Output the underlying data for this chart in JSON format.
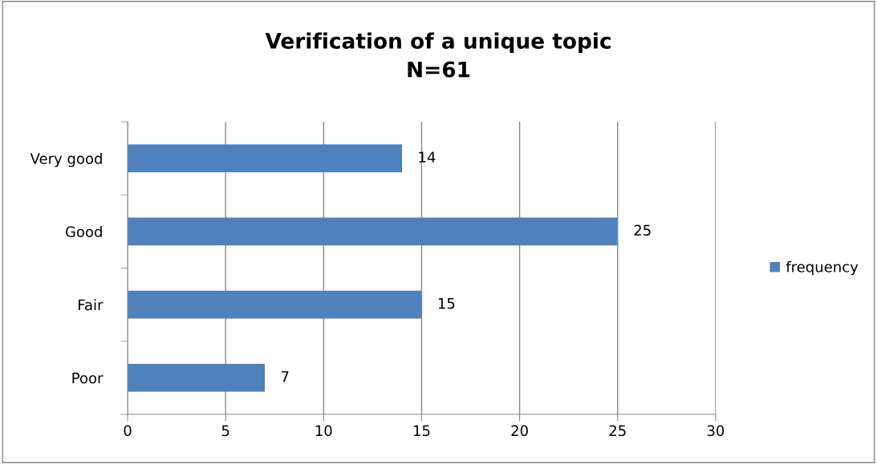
{
  "chart_data": {
    "type": "bar",
    "orientation": "horizontal",
    "title": "Verification of a unique topic",
    "subtitle": "N=61",
    "categories": [
      "Very good",
      "Good",
      "Fair",
      "Poor"
    ],
    "series": [
      {
        "name": "frequency",
        "color": "#4f81bd",
        "values": [
          14,
          25,
          15,
          7
        ]
      }
    ],
    "xlim": [
      0,
      30
    ],
    "xticks": [
      0,
      5,
      10,
      15,
      20,
      25,
      30
    ],
    "grid": "x",
    "legend": "right",
    "data_labels": true
  }
}
